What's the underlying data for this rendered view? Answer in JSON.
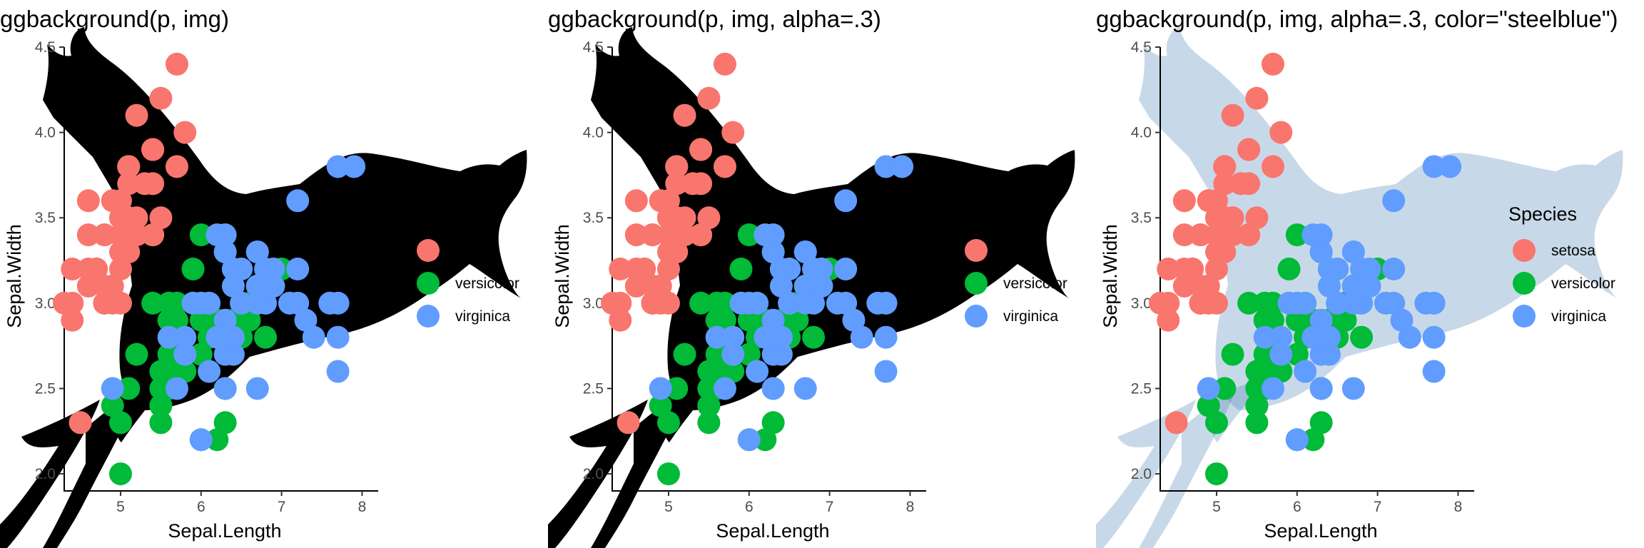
{
  "chart_data": [
    {
      "type": "scatter",
      "title": "ggbackground(p, img)",
      "xlabel": "Sepal.Length",
      "ylabel": "Sepal.Width",
      "background": "bird-silhouette-image",
      "background_color": "#000000",
      "background_opacity": 1,
      "legend_title": ""
    },
    {
      "type": "scatter",
      "title": "ggbackground(p, img, alpha=.3)",
      "xlabel": "Sepal.Length",
      "ylabel": "Sepal.Width",
      "background": "bird-silhouette-image",
      "background_color": "#000000",
      "background_opacity": 1,
      "legend_title": ""
    },
    {
      "type": "scatter",
      "title": "ggbackground(p, img, alpha=.3, color=\"steelblue\")",
      "xlabel": "Sepal.Length",
      "ylabel": "Sepal.Width",
      "background": "bird-silhouette-image",
      "background_color": "#4682b4",
      "background_opacity": 0.3,
      "legend_title": "Species"
    }
  ],
  "shared": {
    "xlim": [
      4.3,
      8.2
    ],
    "ylim": [
      1.9,
      4.5
    ],
    "xticks": [
      5,
      6,
      7,
      8
    ],
    "yticks": [
      2.0,
      2.5,
      3.0,
      3.5,
      4.0,
      4.5
    ],
    "ytick_labels": [
      "2.0",
      "2.5",
      "3.0",
      "3.5",
      "4.0",
      "4.5"
    ],
    "legend_placement": "right",
    "grid": false,
    "series": [
      {
        "name": "setosa",
        "color": "#f8766d",
        "points": [
          [
            5.1,
            3.5
          ],
          [
            4.9,
            3.0
          ],
          [
            4.7,
            3.2
          ],
          [
            4.6,
            3.1
          ],
          [
            5.0,
            3.6
          ],
          [
            5.4,
            3.9
          ],
          [
            4.6,
            3.4
          ],
          [
            5.0,
            3.4
          ],
          [
            4.4,
            2.9
          ],
          [
            4.9,
            3.1
          ],
          [
            5.4,
            3.7
          ],
          [
            4.8,
            3.4
          ],
          [
            4.8,
            3.0
          ],
          [
            4.3,
            3.0
          ],
          [
            5.8,
            4.0
          ],
          [
            5.7,
            4.4
          ],
          [
            5.4,
            3.9
          ],
          [
            5.1,
            3.5
          ],
          [
            5.7,
            3.8
          ],
          [
            5.1,
            3.8
          ],
          [
            5.4,
            3.4
          ],
          [
            5.1,
            3.7
          ],
          [
            4.6,
            3.6
          ],
          [
            5.1,
            3.3
          ],
          [
            4.8,
            3.4
          ],
          [
            5.0,
            3.0
          ],
          [
            5.0,
            3.4
          ],
          [
            5.2,
            3.5
          ],
          [
            5.2,
            3.4
          ],
          [
            4.7,
            3.2
          ],
          [
            4.8,
            3.1
          ],
          [
            5.4,
            3.4
          ],
          [
            5.2,
            4.1
          ],
          [
            5.5,
            4.2
          ],
          [
            4.9,
            3.1
          ],
          [
            5.0,
            3.2
          ],
          [
            5.5,
            3.5
          ],
          [
            4.9,
            3.6
          ],
          [
            4.4,
            3.0
          ],
          [
            5.1,
            3.4
          ],
          [
            5.0,
            3.5
          ],
          [
            4.5,
            2.3
          ],
          [
            4.4,
            3.2
          ],
          [
            5.0,
            3.5
          ],
          [
            5.1,
            3.8
          ],
          [
            4.8,
            3.0
          ],
          [
            5.1,
            3.8
          ],
          [
            4.6,
            3.2
          ],
          [
            5.3,
            3.7
          ],
          [
            5.0,
            3.3
          ]
        ]
      },
      {
        "name": "versicolor",
        "color": "#00ba38",
        "points": [
          [
            7.0,
            3.2
          ],
          [
            6.4,
            3.2
          ],
          [
            6.9,
            3.1
          ],
          [
            5.5,
            2.3
          ],
          [
            6.5,
            2.8
          ],
          [
            5.7,
            2.8
          ],
          [
            6.3,
            3.3
          ],
          [
            4.9,
            2.4
          ],
          [
            6.6,
            2.9
          ],
          [
            5.2,
            2.7
          ],
          [
            5.0,
            2.0
          ],
          [
            5.9,
            3.0
          ],
          [
            6.0,
            2.2
          ],
          [
            6.1,
            2.9
          ],
          [
            5.6,
            2.9
          ],
          [
            6.7,
            3.1
          ],
          [
            5.6,
            3.0
          ],
          [
            5.8,
            2.7
          ],
          [
            6.2,
            2.2
          ],
          [
            5.6,
            2.5
          ],
          [
            5.9,
            3.2
          ],
          [
            6.1,
            2.8
          ],
          [
            6.3,
            2.5
          ],
          [
            6.1,
            2.8
          ],
          [
            6.4,
            2.9
          ],
          [
            6.6,
            3.0
          ],
          [
            6.8,
            2.8
          ],
          [
            6.7,
            3.0
          ],
          [
            6.0,
            2.9
          ],
          [
            5.7,
            2.6
          ],
          [
            5.5,
            2.4
          ],
          [
            5.5,
            2.4
          ],
          [
            5.8,
            2.7
          ],
          [
            6.0,
            2.7
          ],
          [
            5.4,
            3.0
          ],
          [
            6.0,
            3.4
          ],
          [
            6.7,
            3.1
          ],
          [
            6.3,
            2.3
          ],
          [
            5.6,
            3.0
          ],
          [
            5.5,
            2.5
          ],
          [
            5.5,
            2.6
          ],
          [
            6.1,
            3.0
          ],
          [
            5.8,
            2.6
          ],
          [
            5.0,
            2.3
          ],
          [
            5.6,
            2.7
          ],
          [
            5.7,
            3.0
          ],
          [
            5.7,
            2.9
          ],
          [
            6.2,
            2.9
          ],
          [
            5.1,
            2.5
          ],
          [
            5.7,
            2.8
          ]
        ]
      },
      {
        "name": "virginica",
        "color": "#619cff",
        "points": [
          [
            6.3,
            3.3
          ],
          [
            5.8,
            2.7
          ],
          [
            7.1,
            3.0
          ],
          [
            6.3,
            2.9
          ],
          [
            6.5,
            3.0
          ],
          [
            7.6,
            3.0
          ],
          [
            4.9,
            2.5
          ],
          [
            7.3,
            2.9
          ],
          [
            6.7,
            2.5
          ],
          [
            7.2,
            3.6
          ],
          [
            6.5,
            3.2
          ],
          [
            6.4,
            2.7
          ],
          [
            6.8,
            3.0
          ],
          [
            5.7,
            2.5
          ],
          [
            5.8,
            2.8
          ],
          [
            6.4,
            3.2
          ],
          [
            6.5,
            3.0
          ],
          [
            7.7,
            3.8
          ],
          [
            7.7,
            2.6
          ],
          [
            6.0,
            2.2
          ],
          [
            6.9,
            3.2
          ],
          [
            5.6,
            2.8
          ],
          [
            7.7,
            2.8
          ],
          [
            6.3,
            2.7
          ],
          [
            6.7,
            3.3
          ],
          [
            7.2,
            3.2
          ],
          [
            6.2,
            2.8
          ],
          [
            6.1,
            3.0
          ],
          [
            6.4,
            2.8
          ],
          [
            7.2,
            3.0
          ],
          [
            7.4,
            2.8
          ],
          [
            7.9,
            3.8
          ],
          [
            6.4,
            2.8
          ],
          [
            6.3,
            2.8
          ],
          [
            6.1,
            2.6
          ],
          [
            7.7,
            3.0
          ],
          [
            6.3,
            3.4
          ],
          [
            6.4,
            3.1
          ],
          [
            6.0,
            3.0
          ],
          [
            6.9,
            3.1
          ],
          [
            6.7,
            3.1
          ],
          [
            6.9,
            3.1
          ],
          [
            5.8,
            2.7
          ],
          [
            6.8,
            3.2
          ],
          [
            6.7,
            3.3
          ],
          [
            6.7,
            3.0
          ],
          [
            6.3,
            2.5
          ],
          [
            6.5,
            3.0
          ],
          [
            6.2,
            3.4
          ],
          [
            5.9,
            3.0
          ]
        ]
      }
    ]
  }
}
